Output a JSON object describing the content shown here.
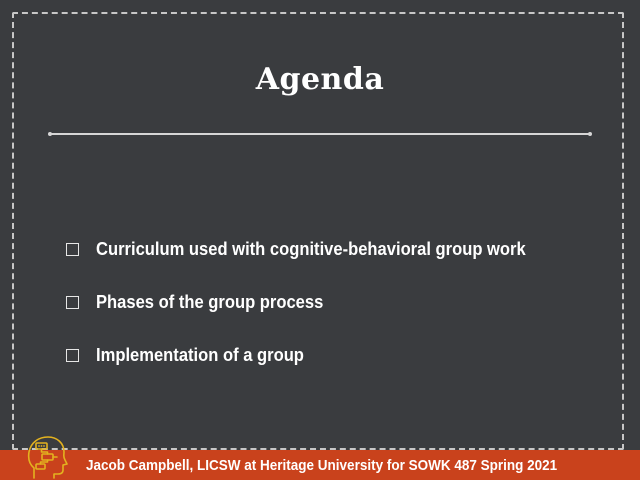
{
  "slide": {
    "title": "Agenda",
    "bullets": [
      "Curriculum used with cognitive-behavioral group work",
      "Phases of the group process",
      "Implementation of a group"
    ]
  },
  "footer": {
    "text": "Jacob Campbell, LICSW at Heritage University for SOWK 487 Spring 2021",
    "logo_icon": "head-flowchart-icon"
  },
  "colors": {
    "background": "#3a3c3f",
    "footer": "#c9421c",
    "logo": "#e3b21f",
    "text": "#ffffff"
  }
}
